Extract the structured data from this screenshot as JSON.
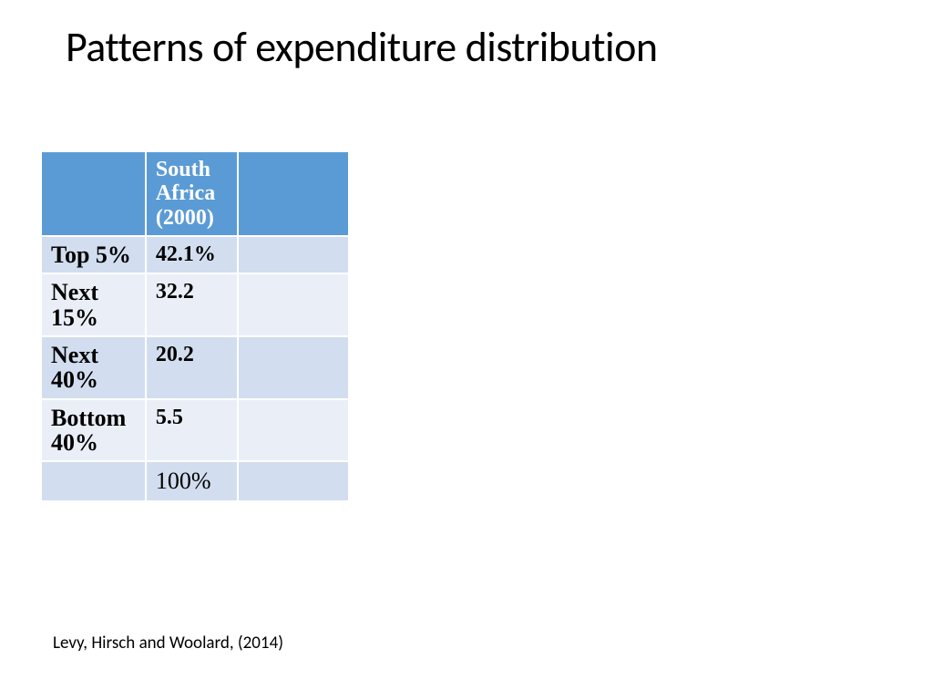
{
  "title": "Patterns of expenditure distribution",
  "table": {
    "headers": [
      "",
      "South Africa (2000)",
      ""
    ],
    "header_bg": "#5b9bd5",
    "header_text_color": "#ffffff",
    "row_odd_bg": "#d2deef",
    "row_even_bg": "#eaeff7",
    "rows": [
      {
        "label": "Top 5%",
        "value": "42.1%",
        "extra": ""
      },
      {
        "label": "Next 15%",
        "value": "32.2",
        "extra": ""
      },
      {
        "label": "Next 40%",
        "value": "20.2",
        "extra": ""
      },
      {
        "label": "Bottom 40%",
        "value": "5.5",
        "extra": ""
      }
    ],
    "total": {
      "label": "",
      "value": "100%",
      "extra": ""
    }
  },
  "citation": "Levy, Hirsch and Woolard, (2014)"
}
